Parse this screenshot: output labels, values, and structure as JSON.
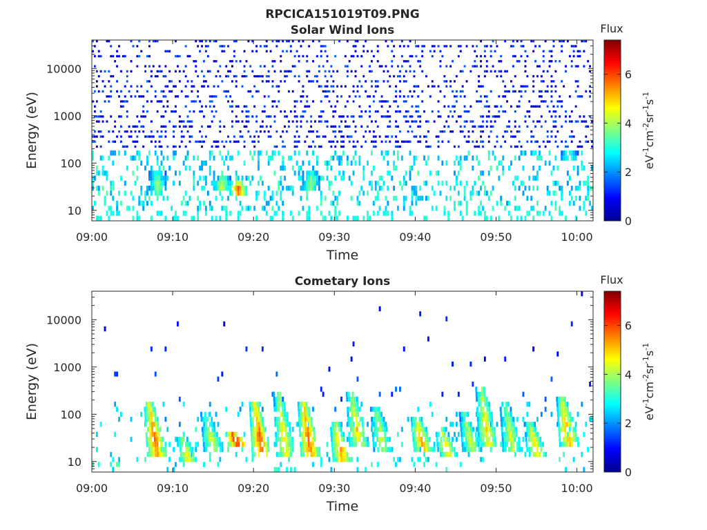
{
  "figure_title": "RPCICA151019T09.PNG",
  "colors": {
    "axis": "#262626",
    "background": "#ffffff",
    "colormap": "jet"
  },
  "chart_data": [
    {
      "type": "heatmap",
      "title": "Solar Wind Ions",
      "xlabel": "Time",
      "ylabel": "Energy (eV)",
      "xlim": [
        "09:00",
        "10:02"
      ],
      "ylim": [
        6,
        40000
      ],
      "yscale": "log",
      "x_ticks": [
        "09:00",
        "09:10",
        "09:20",
        "09:30",
        "09:40",
        "09:50",
        "10:00"
      ],
      "y_ticks": [
        "10",
        "100",
        "1000",
        "10000"
      ],
      "colorbar": {
        "label": "Flux",
        "unit": "eV-1cm-2sr-1s-1",
        "range": [
          0,
          7.4
        ],
        "ticks": [
          "0",
          "2",
          "4",
          "6"
        ]
      },
      "description": "Sparse blue counts (flux ~0.5-1.5) from ~100 eV to ~30000 eV across the whole interval; cyan/green counts (flux ~2-3.5) below ~150 eV.",
      "features": [
        {
          "time": "09:08",
          "energy_range": [
            20,
            60
          ],
          "flux": 4
        },
        {
          "time": "09:16",
          "energy_range": [
            25,
            45
          ],
          "flux": 4.5
        },
        {
          "time": "09:18",
          "energy_range": [
            20,
            35
          ],
          "flux": 6
        },
        {
          "time": "09:27",
          "energy_range": [
            25,
            60
          ],
          "flux": 4
        },
        {
          "time": "09:59",
          "energy_range": [
            100,
            180
          ],
          "flux": 3.5
        }
      ]
    },
    {
      "type": "heatmap",
      "title": "Cometary Ions",
      "xlabel": "Time",
      "ylabel": "Energy (eV)",
      "xlim": [
        "09:00",
        "10:02"
      ],
      "ylim": [
        6,
        40000
      ],
      "yscale": "log",
      "x_ticks": [
        "09:00",
        "09:10",
        "09:20",
        "09:30",
        "09:40",
        "09:50",
        "10:00"
      ],
      "y_ticks": [
        "10",
        "100",
        "1000",
        "10000"
      ],
      "colorbar": {
        "label": "Flux",
        "unit": "eV-1cm-2sr-1s-1",
        "range": [
          0,
          7.4
        ],
        "ticks": [
          "0",
          "2",
          "4",
          "6"
        ]
      },
      "description": "Recurrent dispersive ion bursts from ~10 eV up to a few hundred eV, background cyan counts below ~120 eV, isolated blue counts above 1000 eV.",
      "features": [
        {
          "time": "09:08",
          "energy_range": [
            12,
            150
          ],
          "flux": 6
        },
        {
          "time": "09:12",
          "energy_range": [
            8,
            30
          ],
          "flux": 5
        },
        {
          "time": "09:15",
          "energy_range": [
            15,
            90
          ],
          "flux": 4.5
        },
        {
          "time": "09:18",
          "energy_range": [
            20,
            40
          ],
          "flux": 7
        },
        {
          "time": "09:21",
          "energy_range": [
            10,
            180
          ],
          "flux": 6
        },
        {
          "time": "09:24",
          "energy_range": [
            10,
            250
          ],
          "flux": 5
        },
        {
          "time": "09:27",
          "energy_range": [
            12,
            180
          ],
          "flux": 6
        },
        {
          "time": "09:31",
          "energy_range": [
            8,
            60
          ],
          "flux": 5.5
        },
        {
          "time": "09:33",
          "energy_range": [
            20,
            250
          ],
          "flux": 5
        },
        {
          "time": "09:36",
          "energy_range": [
            15,
            120
          ],
          "flux": 4.5
        },
        {
          "time": "09:41",
          "energy_range": [
            15,
            80
          ],
          "flux": 5.5
        },
        {
          "time": "09:44",
          "energy_range": [
            12,
            50
          ],
          "flux": 5
        },
        {
          "time": "09:47",
          "energy_range": [
            15,
            90
          ],
          "flux": 4.5
        },
        {
          "time": "09:49",
          "energy_range": [
            20,
            350
          ],
          "flux": 5
        },
        {
          "time": "09:52",
          "energy_range": [
            15,
            150
          ],
          "flux": 4.5
        },
        {
          "time": "09:55",
          "energy_range": [
            12,
            60
          ],
          "flux": 5
        },
        {
          "time": "09:59",
          "energy_range": [
            20,
            200
          ],
          "flux": 5.5
        }
      ]
    }
  ]
}
